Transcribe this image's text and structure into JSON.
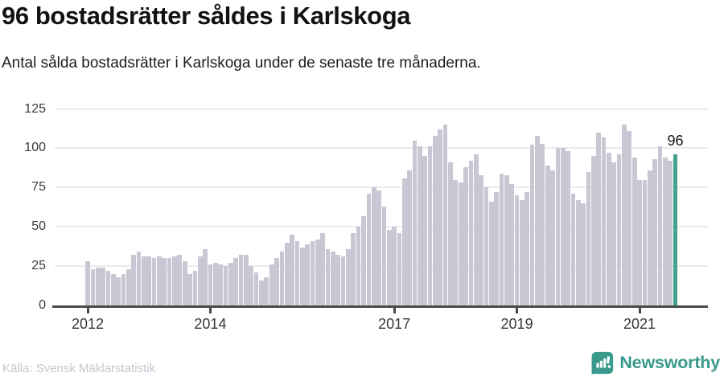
{
  "header": {
    "title": "96 bostadsrätter såldes i Karlskoga",
    "subtitle": "Antal sålda bostadsrätter i Karlskoga under de senaste tre månaderna."
  },
  "chart_data": {
    "type": "bar",
    "title": "96 bostadsrätter såldes i Karlskoga",
    "frequency": "monthly",
    "x_start": "2012-01",
    "x_end": "2021-08",
    "values": [
      28,
      23,
      24,
      24,
      22,
      20,
      18,
      20,
      23,
      32,
      34,
      31,
      31,
      30,
      31,
      30,
      30,
      31,
      32,
      28,
      20,
      22,
      31,
      36,
      26,
      27,
      26,
      25,
      27,
      30,
      32,
      32,
      25,
      21,
      16,
      18,
      26,
      30,
      34,
      40,
      45,
      41,
      37,
      39,
      41,
      42,
      46,
      36,
      34,
      32,
      31,
      36,
      46,
      50,
      57,
      71,
      75,
      73,
      63,
      48,
      50,
      46,
      81,
      86,
      105,
      101,
      95,
      101,
      108,
      112,
      115,
      91,
      80,
      78,
      88,
      92,
      96,
      83,
      75,
      66,
      72,
      84,
      83,
      77,
      70,
      67,
      72,
      102,
      108,
      103,
      89,
      86,
      100,
      100,
      98,
      71,
      67,
      65,
      85,
      95,
      110,
      107,
      97,
      91,
      96,
      115,
      111,
      94,
      80,
      80,
      86,
      93,
      101,
      94,
      92,
      96
    ],
    "highlight_last": true,
    "annotation_label": "96",
    "y_ticks": [
      0,
      25,
      50,
      75,
      100,
      125
    ],
    "ylim": [
      0,
      125
    ],
    "x_tick_years": [
      "2012",
      "2014",
      "2017",
      "2019",
      "2021"
    ],
    "grid": "horizontal",
    "legend": "none",
    "colors": {
      "bar": "#c9c7d3",
      "highlight": "#44a08f",
      "axis": "#4a4a4a",
      "gridline": "#ebebeb"
    }
  },
  "source": {
    "label": "Källa: Svensk Mäklarstatistik"
  },
  "brand": {
    "name": "Newsworthy",
    "color": "#399a8b"
  }
}
